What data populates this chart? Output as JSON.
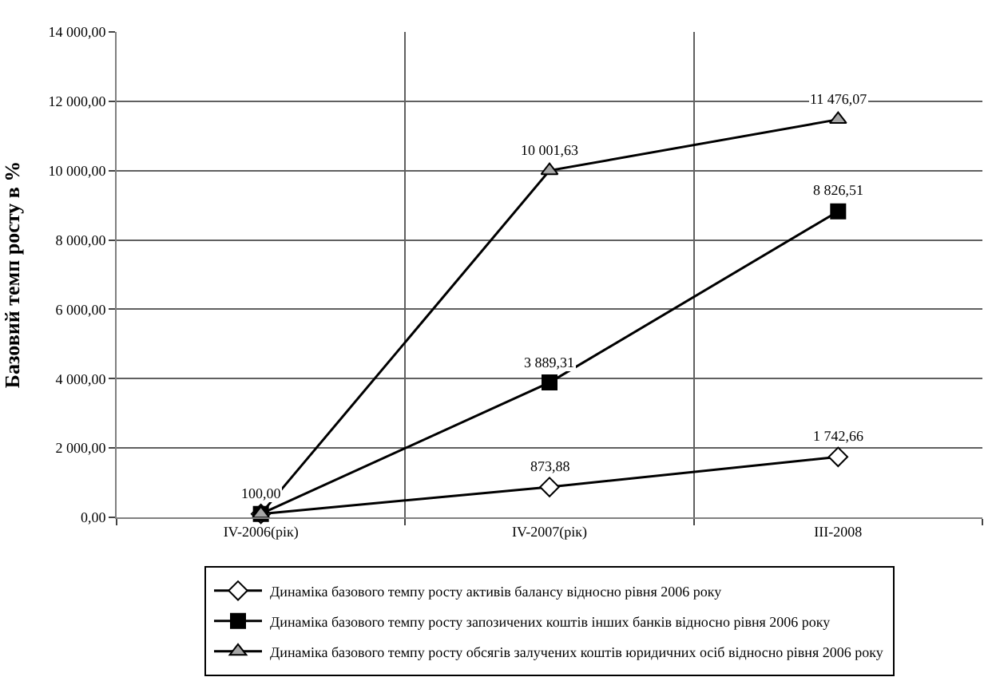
{
  "chart_data": {
    "type": "line",
    "ylabel": "Базовий темп росту в %",
    "categories": [
      "IV-2006(рік)",
      "IV-2007(рік)",
      "III-2008"
    ],
    "series": [
      {
        "name": "Динаміка базового темпу росту активів балансу відносно рівня 2006 року",
        "color": "#ffffff",
        "marker": "diamond",
        "values": [
          100,
          873.88,
          1742.66
        ],
        "value_labels": [
          "100,00",
          "873,88",
          "1 742,66"
        ]
      },
      {
        "name": "Динаміка базового темпу росту запозичених коштів інших банків відносно рівня 2006 року",
        "color": "#000000",
        "marker": "square",
        "values": [
          100,
          3889.31,
          8826.51
        ],
        "value_labels": [
          null,
          "3 889,31",
          "8 826,51"
        ]
      },
      {
        "name": "Динаміка базового темпу росту обсягів залучених коштів юридичних осіб відносно рівня 2006 року",
        "color": "#a6a6a6",
        "marker": "triangle",
        "values": [
          100,
          10001.63,
          11476.07
        ],
        "value_labels": [
          null,
          "10 001,63",
          "11 476,07"
        ]
      }
    ],
    "ylim": [
      0,
      14000
    ],
    "yticks": [
      {
        "value": 0,
        "label": "0,00"
      },
      {
        "value": 2000,
        "label": "2 000,00"
      },
      {
        "value": 4000,
        "label": "4 000,00"
      },
      {
        "value": 6000,
        "label": "6 000,00"
      },
      {
        "value": 8000,
        "label": "8 000,00"
      },
      {
        "value": 10000,
        "label": "10 000,00"
      },
      {
        "value": 12000,
        "label": "12 000,00"
      },
      {
        "value": 14000,
        "label": "14 000,00"
      }
    ],
    "grid": true,
    "legend": "bottom",
    "line_style": "solid"
  }
}
